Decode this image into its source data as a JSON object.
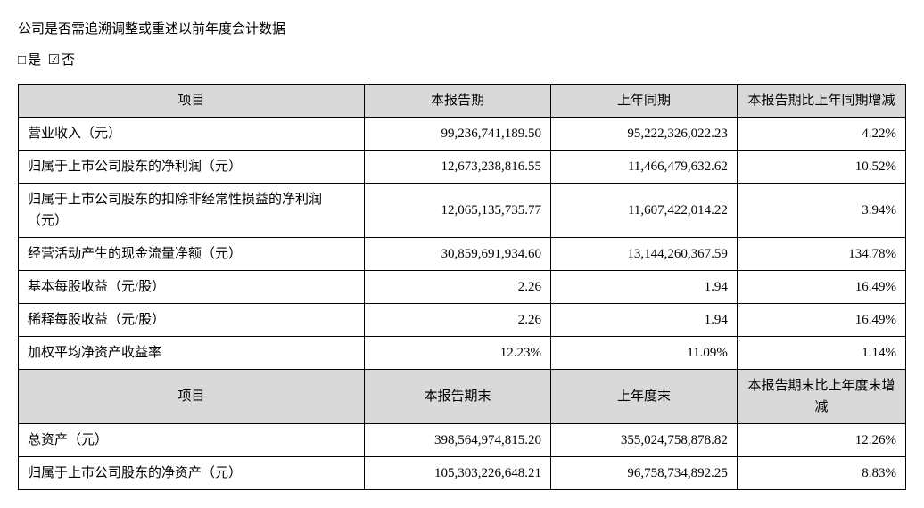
{
  "intro": "公司是否需追溯调整或重述以前年度会计数据",
  "checkbox_yes_sym": "□",
  "checkbox_yes_label": "是",
  "checkbox_no_sym": "☑",
  "checkbox_no_label": "否",
  "headers1": {
    "item": "项目",
    "current": "本报告期",
    "prior": "上年同期",
    "change": "本报告期比上年同期增减"
  },
  "rows1": [
    {
      "label": "营业收入（元）",
      "current": "99,236,741,189.50",
      "prior": "95,222,326,022.23",
      "change": "4.22%"
    },
    {
      "label": "归属于上市公司股东的净利润（元）",
      "current": "12,673,238,816.55",
      "prior": "11,466,479,632.62",
      "change": "10.52%"
    },
    {
      "label": "归属于上市公司股东的扣除非经常性损益的净利润（元）",
      "current": "12,065,135,735.77",
      "prior": "11,607,422,014.22",
      "change": "3.94%"
    },
    {
      "label": "经营活动产生的现金流量净额（元）",
      "current": "30,859,691,934.60",
      "prior": "13,144,260,367.59",
      "change": "134.78%"
    },
    {
      "label": "基本每股收益（元/股）",
      "current": "2.26",
      "prior": "1.94",
      "change": "16.49%"
    },
    {
      "label": "稀释每股收益（元/股）",
      "current": "2.26",
      "prior": "1.94",
      "change": "16.49%"
    },
    {
      "label": "加权平均净资产收益率",
      "current": "12.23%",
      "prior": "11.09%",
      "change": "1.14%"
    }
  ],
  "headers2": {
    "item": "项目",
    "current": "本报告期末",
    "prior": "上年度末",
    "change": "本报告期末比上年度末增减"
  },
  "rows2": [
    {
      "label": "总资产（元）",
      "current": "398,564,974,815.20",
      "prior": "355,024,758,878.82",
      "change": "12.26%"
    },
    {
      "label": "归属于上市公司股东的净资产（元）",
      "current": "105,303,226,648.21",
      "prior": "96,758,734,892.25",
      "change": "8.83%"
    }
  ]
}
